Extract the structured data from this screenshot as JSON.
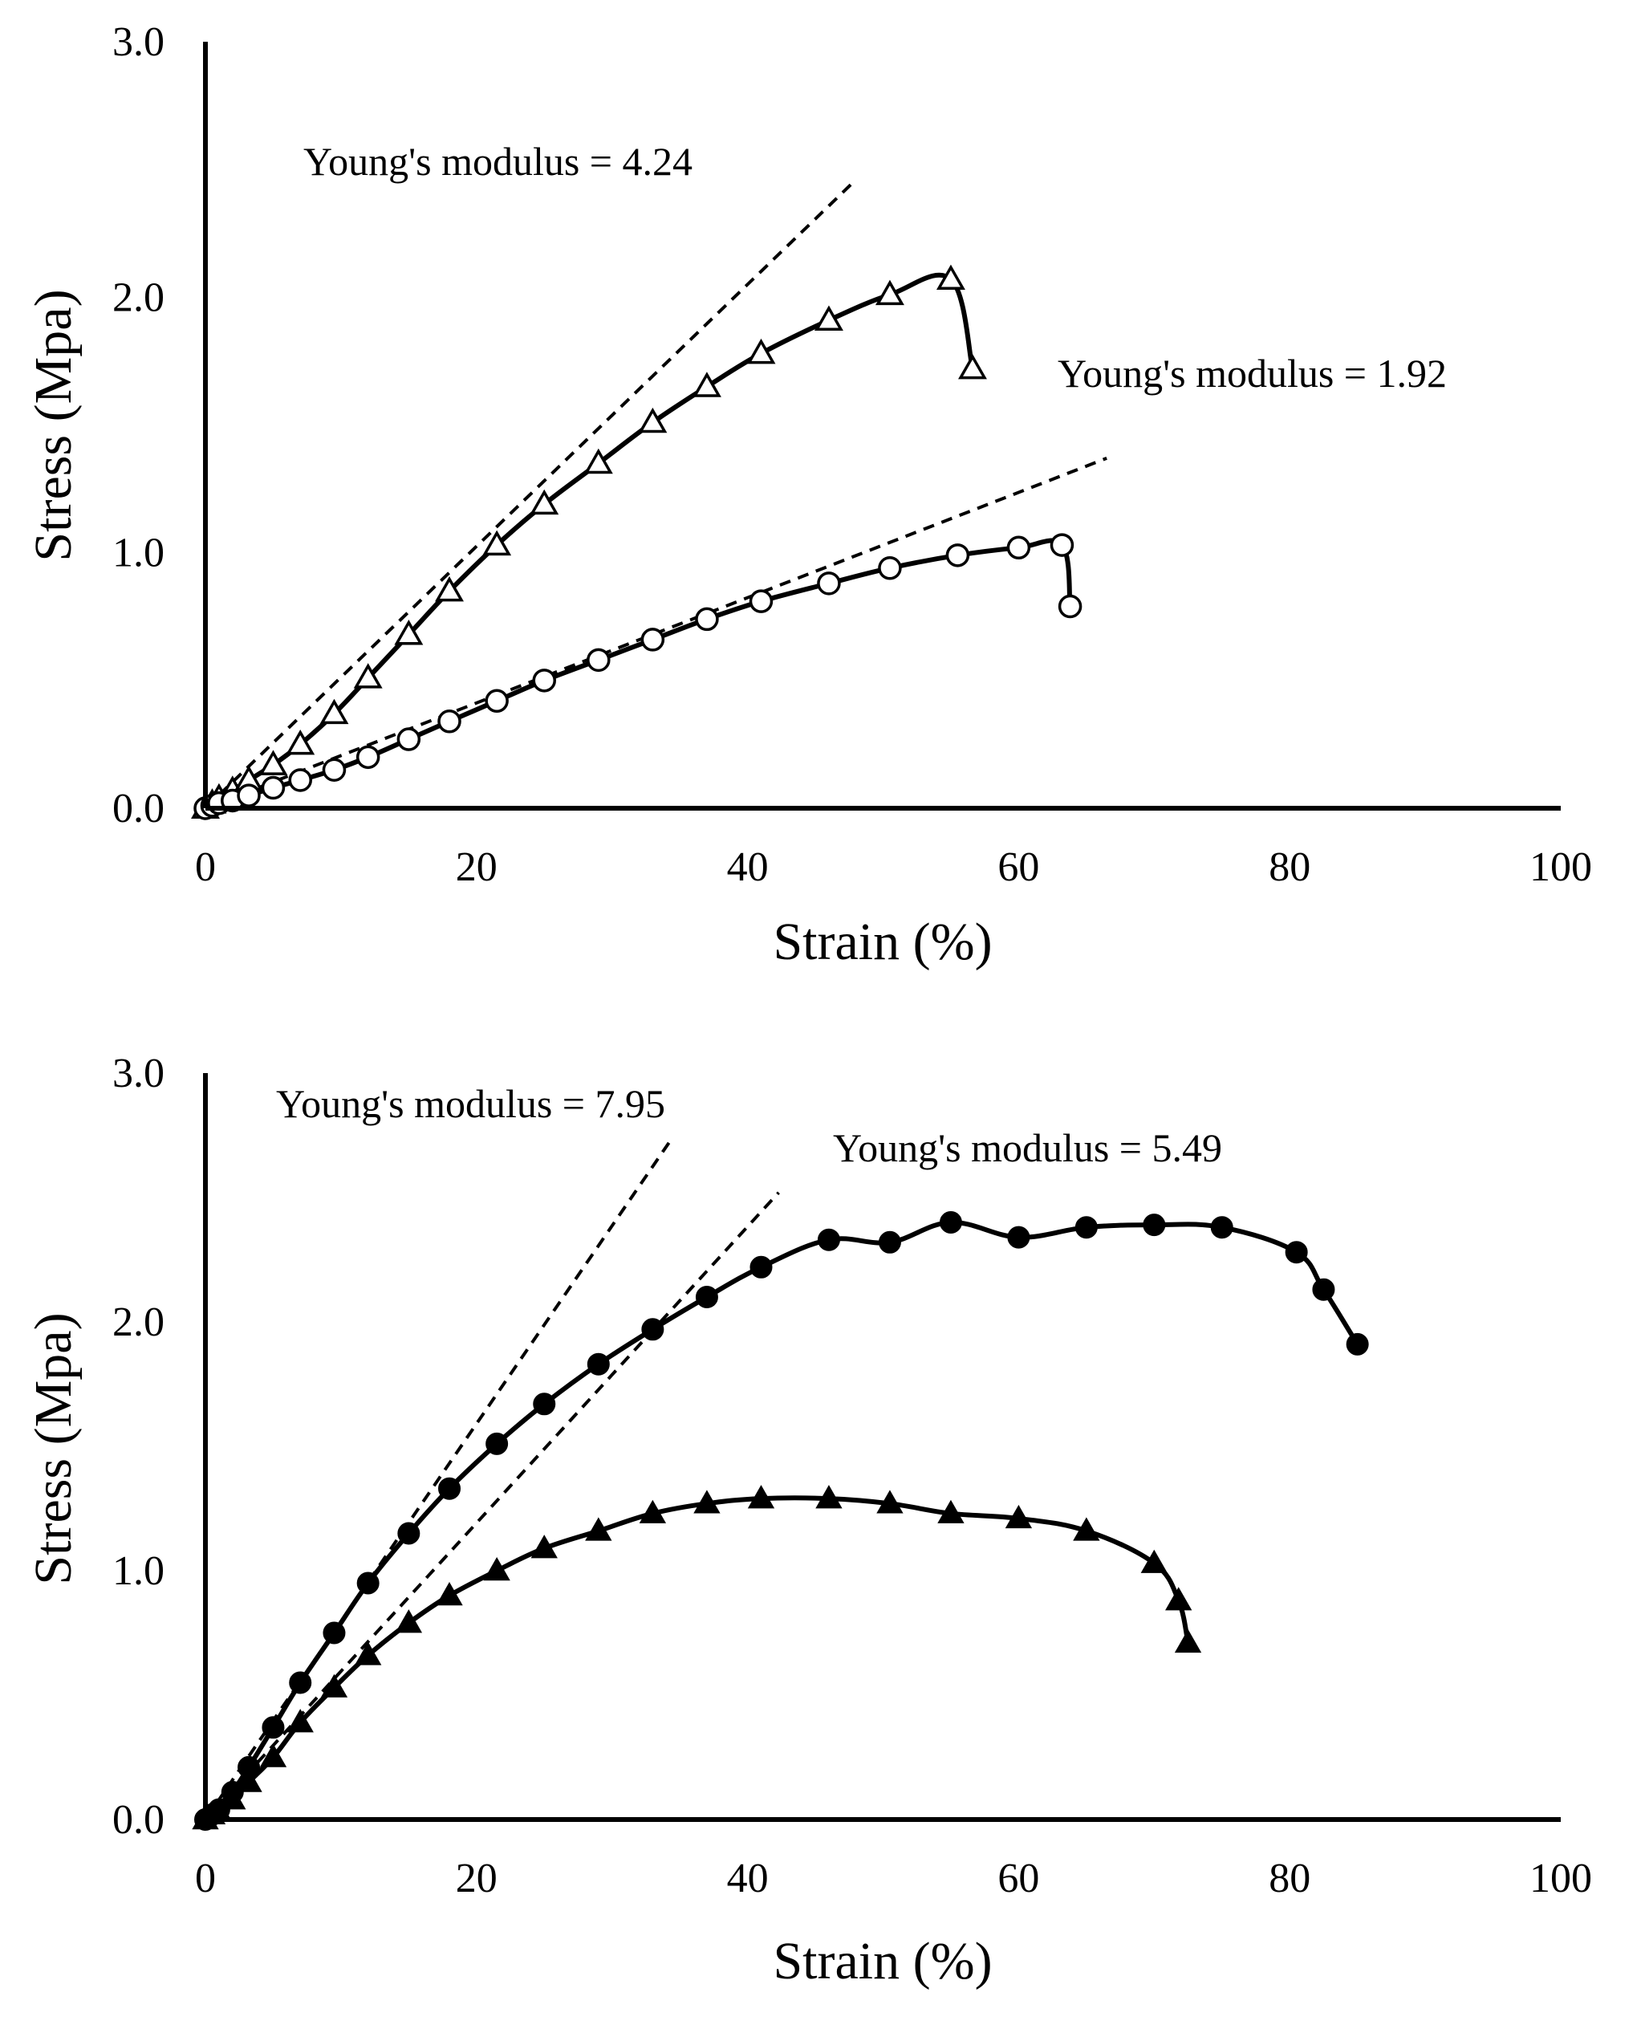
{
  "chart_data": [
    {
      "type": "line",
      "xlabel": "Strain (%)",
      "ylabel": "Stress (Mpa)",
      "xlim": [
        0,
        100
      ],
      "ylim": [
        0,
        3.0
      ],
      "xticks": [
        "0",
        "20",
        "40",
        "60",
        "80",
        "100"
      ],
      "yticks": [
        "0.0",
        "1.0",
        "2.0",
        "3.0"
      ],
      "grid": false,
      "series": [
        {
          "name": "open-triangle",
          "marker": "triangle-open",
          "x": [
            0,
            0.5,
            1,
            2,
            3.2,
            5,
            7,
            9.5,
            12,
            15,
            18,
            21.5,
            25,
            29,
            33,
            37,
            41,
            46,
            50.5,
            55,
            56.6
          ],
          "y": [
            0,
            0.02,
            0.04,
            0.07,
            0.11,
            0.17,
            0.25,
            0.37,
            0.51,
            0.68,
            0.85,
            1.03,
            1.19,
            1.35,
            1.51,
            1.65,
            1.78,
            1.91,
            2.01,
            2.07,
            1.72
          ]
        },
        {
          "name": "open-circle",
          "marker": "circle-open",
          "x": [
            0,
            0.5,
            1,
            2,
            3.2,
            5,
            7,
            9.5,
            12,
            15,
            18,
            21.5,
            25,
            29,
            33,
            37,
            41,
            46,
            50.5,
            55.5,
            60,
            63.2,
            63.8
          ],
          "y": [
            0,
            0.01,
            0.02,
            0.03,
            0.05,
            0.08,
            0.11,
            0.15,
            0.2,
            0.27,
            0.34,
            0.42,
            0.5,
            0.58,
            0.66,
            0.74,
            0.81,
            0.88,
            0.94,
            0.99,
            1.02,
            1.03,
            0.79
          ]
        }
      ],
      "fits": [
        {
          "label": "Young's modulus = 4.24",
          "x": [
            0,
            47.8
          ],
          "y": [
            0,
            2.45
          ]
        },
        {
          "label": "Young's modulus = 1.92",
          "x": [
            0,
            66.5
          ],
          "y": [
            0,
            1.37
          ]
        }
      ],
      "annotations": [
        "Young's modulus = 4.24",
        "Young's modulus = 1.92"
      ]
    },
    {
      "type": "line",
      "xlabel": "Strain (%)",
      "ylabel": "Stress (Mpa)",
      "xlim": [
        0,
        100
      ],
      "ylim": [
        0,
        3.0
      ],
      "xticks": [
        "0",
        "20",
        "40",
        "60",
        "80",
        "100"
      ],
      "yticks": [
        "0.0",
        "1.0",
        "2.0",
        "3.0"
      ],
      "grid": false,
      "series": [
        {
          "name": "filled-circle",
          "marker": "circle-filled",
          "x": [
            0,
            0.5,
            1,
            2,
            3.2,
            5,
            7,
            9.5,
            12,
            15,
            18,
            21.5,
            25,
            29,
            33,
            37,
            41,
            46,
            50.5,
            55,
            60,
            65,
            70,
            75,
            80.5,
            82.5,
            85
          ],
          "y": [
            0,
            0.02,
            0.04,
            0.11,
            0.21,
            0.37,
            0.55,
            0.75,
            0.95,
            1.15,
            1.33,
            1.51,
            1.67,
            1.83,
            1.97,
            2.1,
            2.22,
            2.33,
            2.32,
            2.4,
            2.34,
            2.38,
            2.39,
            2.38,
            2.28,
            2.13,
            1.91
          ]
        },
        {
          "name": "filled-triangle",
          "marker": "triangle-filled",
          "x": [
            0,
            0.5,
            1,
            2,
            3.2,
            5,
            7,
            9.5,
            12,
            15,
            18,
            21.5,
            25,
            29,
            33,
            37,
            41,
            46,
            50.5,
            55,
            60,
            65,
            70,
            71.8,
            72.5
          ],
          "y": [
            0,
            0.02,
            0.03,
            0.08,
            0.15,
            0.25,
            0.39,
            0.53,
            0.66,
            0.79,
            0.9,
            1.0,
            1.09,
            1.16,
            1.23,
            1.27,
            1.29,
            1.29,
            1.27,
            1.23,
            1.21,
            1.16,
            1.03,
            0.88,
            0.71
          ]
        }
      ],
      "fits": [
        {
          "label": "Young's modulus = 7.95",
          "x": [
            0,
            34.2
          ],
          "y": [
            0,
            2.72
          ]
        },
        {
          "label": "Young's modulus = 5.49",
          "x": [
            0,
            42.3
          ],
          "y": [
            0,
            2.52
          ]
        }
      ],
      "annotations": [
        "Young's modulus = 7.95",
        "Young's modulus = 5.49"
      ]
    }
  ]
}
